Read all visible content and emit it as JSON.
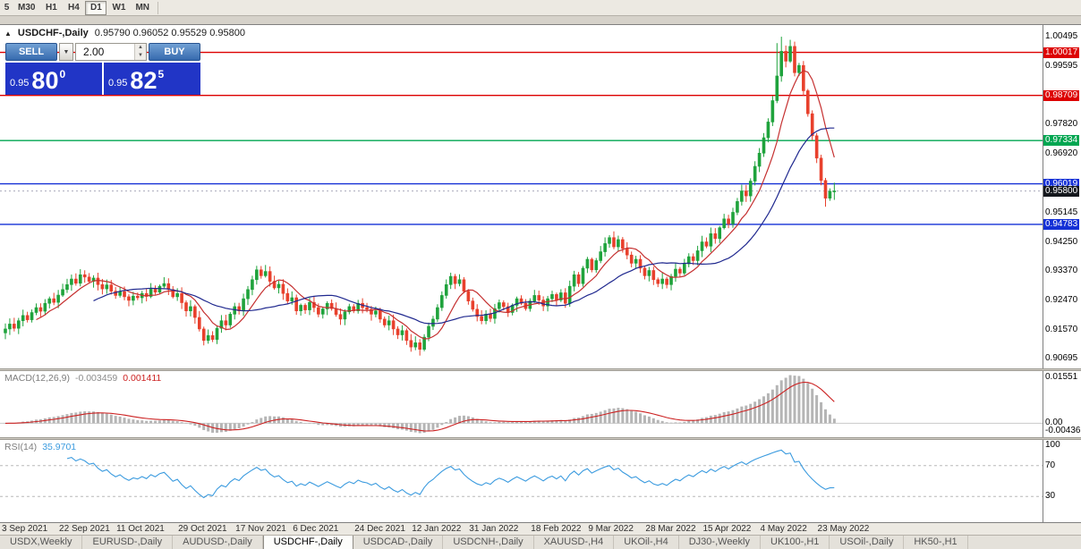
{
  "toolbar": {
    "timeframes": [
      {
        "label": "5",
        "active": false
      },
      {
        "label": "M30",
        "active": false
      },
      {
        "label": "H1",
        "active": false
      },
      {
        "label": "H4",
        "active": false
      },
      {
        "label": "D1",
        "active": true
      },
      {
        "label": "W1",
        "active": false
      },
      {
        "label": "MN",
        "active": false
      }
    ]
  },
  "chart_header": {
    "collapse_icon": "▲",
    "title": "USDCHF-,Daily",
    "ohlc": "0.95790 0.96052 0.95529 0.95800"
  },
  "one_click": {
    "sell_label": "SELL",
    "buy_label": "BUY",
    "lot": "2.00",
    "sell_price": {
      "prefix": "0.95",
      "big": "80",
      "sup": "0"
    },
    "buy_price": {
      "prefix": "0.95",
      "big": "82",
      "sup": "5"
    }
  },
  "chart_data": {
    "type": "candlestick",
    "symbol": "USDCHF-,Daily",
    "current_bar_ohlc": {
      "open": 0.9579,
      "high": 0.96052,
      "low": 0.95529,
      "close": 0.958
    },
    "current_price": 0.958,
    "y_range": [
      0.904,
      1.0085
    ],
    "closes": [
      0.916,
      0.9175,
      0.9162,
      0.9185,
      0.9201,
      0.9188,
      0.921,
      0.9225,
      0.9214,
      0.9238,
      0.9252,
      0.9241,
      0.9263,
      0.928,
      0.9295,
      0.9312,
      0.9299,
      0.9325,
      0.9318,
      0.9305,
      0.9315,
      0.9295,
      0.9282,
      0.9294,
      0.9275,
      0.9262,
      0.9274,
      0.9258,
      0.9247,
      0.926,
      0.9255,
      0.9268,
      0.9259,
      0.9281,
      0.9272,
      0.929,
      0.9298,
      0.928,
      0.9258,
      0.9268,
      0.924,
      0.9215,
      0.9228,
      0.9195,
      0.916,
      0.9125,
      0.914,
      0.9128,
      0.9162,
      0.9185,
      0.9172,
      0.9205,
      0.9228,
      0.9215,
      0.9252,
      0.928,
      0.931,
      0.934,
      0.9322,
      0.9335,
      0.9305,
      0.9285,
      0.9296,
      0.9268,
      0.9245,
      0.9255,
      0.9215,
      0.9232,
      0.9218,
      0.9241,
      0.9225,
      0.9205,
      0.9221,
      0.9238,
      0.9222,
      0.9204,
      0.919,
      0.9212,
      0.9228,
      0.9215,
      0.9238,
      0.9225,
      0.922,
      0.9205,
      0.9215,
      0.919,
      0.9172,
      0.9185,
      0.916,
      0.9142,
      0.9155,
      0.9125,
      0.9105,
      0.9118,
      0.9098,
      0.9135,
      0.9168,
      0.919,
      0.9225,
      0.9262,
      0.9295,
      0.932,
      0.9298,
      0.931,
      0.9275,
      0.9245,
      0.922,
      0.9198,
      0.9185,
      0.9205,
      0.9192,
      0.9222,
      0.924,
      0.9228,
      0.921,
      0.9232,
      0.9252,
      0.9238,
      0.9222,
      0.9245,
      0.9262,
      0.9248,
      0.923,
      0.9252,
      0.9265,
      0.9248,
      0.927,
      0.9238,
      0.929,
      0.9325,
      0.9298,
      0.9345,
      0.9372,
      0.934,
      0.9368,
      0.9395,
      0.942,
      0.9438,
      0.941,
      0.9432,
      0.9405,
      0.9385,
      0.936,
      0.9372,
      0.9345,
      0.9322,
      0.9338,
      0.931,
      0.9298,
      0.9312,
      0.9295,
      0.932,
      0.9342,
      0.933,
      0.9358,
      0.938,
      0.9368,
      0.9398,
      0.9425,
      0.9412,
      0.945,
      0.9435,
      0.9468,
      0.9495,
      0.948,
      0.9515,
      0.9548,
      0.958,
      0.9565,
      0.961,
      0.9655,
      0.9695,
      0.9742,
      0.979,
      0.9855,
      0.993,
      1.0005,
      0.9975,
      1.002,
      0.994,
      0.9962,
      0.9885,
      0.9815,
      0.9748,
      0.968,
      0.9612,
      0.9558,
      0.9579,
      0.958
    ],
    "extremes": [
      {
        "i": 45,
        "low": 0.911
      },
      {
        "i": 94,
        "low": 0.9079
      },
      {
        "i": 175,
        "high": 1.003
      },
      {
        "i": 176,
        "high": 1.00495
      },
      {
        "i": 178,
        "high": 1.004
      },
      {
        "i": 186,
        "low": 0.9532
      }
    ],
    "h_lines": [
      {
        "price": 1.00017,
        "color": "#dd0000"
      },
      {
        "price": 0.98709,
        "color": "#dd0000"
      },
      {
        "price": 0.97334,
        "color": "#00a651"
      },
      {
        "price": 0.96019,
        "color": "#1430d6"
      },
      {
        "price": 0.94783,
        "color": "#1430d6"
      }
    ],
    "up_color": "#1fa33c",
    "down_color": "#e8402c",
    "ma_fast_color": "#c53030",
    "ma_slow_color": "#20298f"
  },
  "y_axis": {
    "labels": [
      {
        "text": "1.00495",
        "badge": null
      },
      {
        "text": "1.00017",
        "badge": "red"
      },
      {
        "text": "0.99595",
        "badge": null
      },
      {
        "text": "0.98709",
        "badge": "red"
      },
      {
        "text": "0.97820",
        "badge": null
      },
      {
        "text": "0.97334",
        "badge": "green"
      },
      {
        "text": "0.96920",
        "badge": null
      },
      {
        "text": "0.96019",
        "badge": "blue"
      },
      {
        "text": "0.95800",
        "badge": "dark"
      },
      {
        "text": "0.95145",
        "badge": null
      },
      {
        "text": "0.94783",
        "badge": "blue"
      },
      {
        "text": "0.94250",
        "badge": null
      },
      {
        "text": "0.93370",
        "badge": null
      },
      {
        "text": "0.92470",
        "badge": null
      },
      {
        "text": "0.91570",
        "badge": null
      },
      {
        "text": "0.90695",
        "badge": null
      }
    ]
  },
  "x_axis": {
    "labels": [
      {
        "text": "3 Sep 2021",
        "day": 0
      },
      {
        "text": "22 Sep 2021",
        "day": 13
      },
      {
        "text": "11 Oct 2021",
        "day": 26
      },
      {
        "text": "29 Oct 2021",
        "day": 40
      },
      {
        "text": "17 Nov 2021",
        "day": 53
      },
      {
        "text": "6 Dec 2021",
        "day": 66
      },
      {
        "text": "24 Dec 2021",
        "day": 80
      },
      {
        "text": "12 Jan 2022",
        "day": 93
      },
      {
        "text": "31 Jan 2022",
        "day": 106
      },
      {
        "text": "18 Feb 2022",
        "day": 120
      },
      {
        "text": "9 Mar 2022",
        "day": 133
      },
      {
        "text": "28 Mar 2022",
        "day": 146
      },
      {
        "text": "15 Apr 2022",
        "day": 159
      },
      {
        "text": "4 May 2022",
        "day": 172
      },
      {
        "text": "23 May 2022",
        "day": 185
      }
    ]
  },
  "macd": {
    "label": "MACD(12,26,9)",
    "value_main": "-0.003459",
    "value_signal": "0.001411",
    "params": [
      12,
      26,
      9
    ],
    "axis_labels": [
      "0.01551",
      "0.00",
      "-0.00436"
    ],
    "histogram_color": "#b5b5b5",
    "signal_color": "#cc2222"
  },
  "rsi": {
    "label": "RSI(14)",
    "value": "35.9701",
    "period": 14,
    "levels": [
      70,
      30
    ],
    "axis_labels": [
      "100",
      "70",
      "30"
    ],
    "line_color": "#3b9bdf"
  },
  "tabs": {
    "active_index": 3,
    "items": [
      "USDX,Weekly",
      "EURUSD-,Daily",
      "AUDUSD-,Daily",
      "USDCHF-,Daily",
      "USDCAD-,Daily",
      "USDCNH-,Daily",
      "XAUUSD-,H4",
      "UKOil-,H4",
      "DJ30-,Weekly",
      "UK100-,H1",
      "USOil-,Daily",
      "HK50-,H1"
    ]
  }
}
